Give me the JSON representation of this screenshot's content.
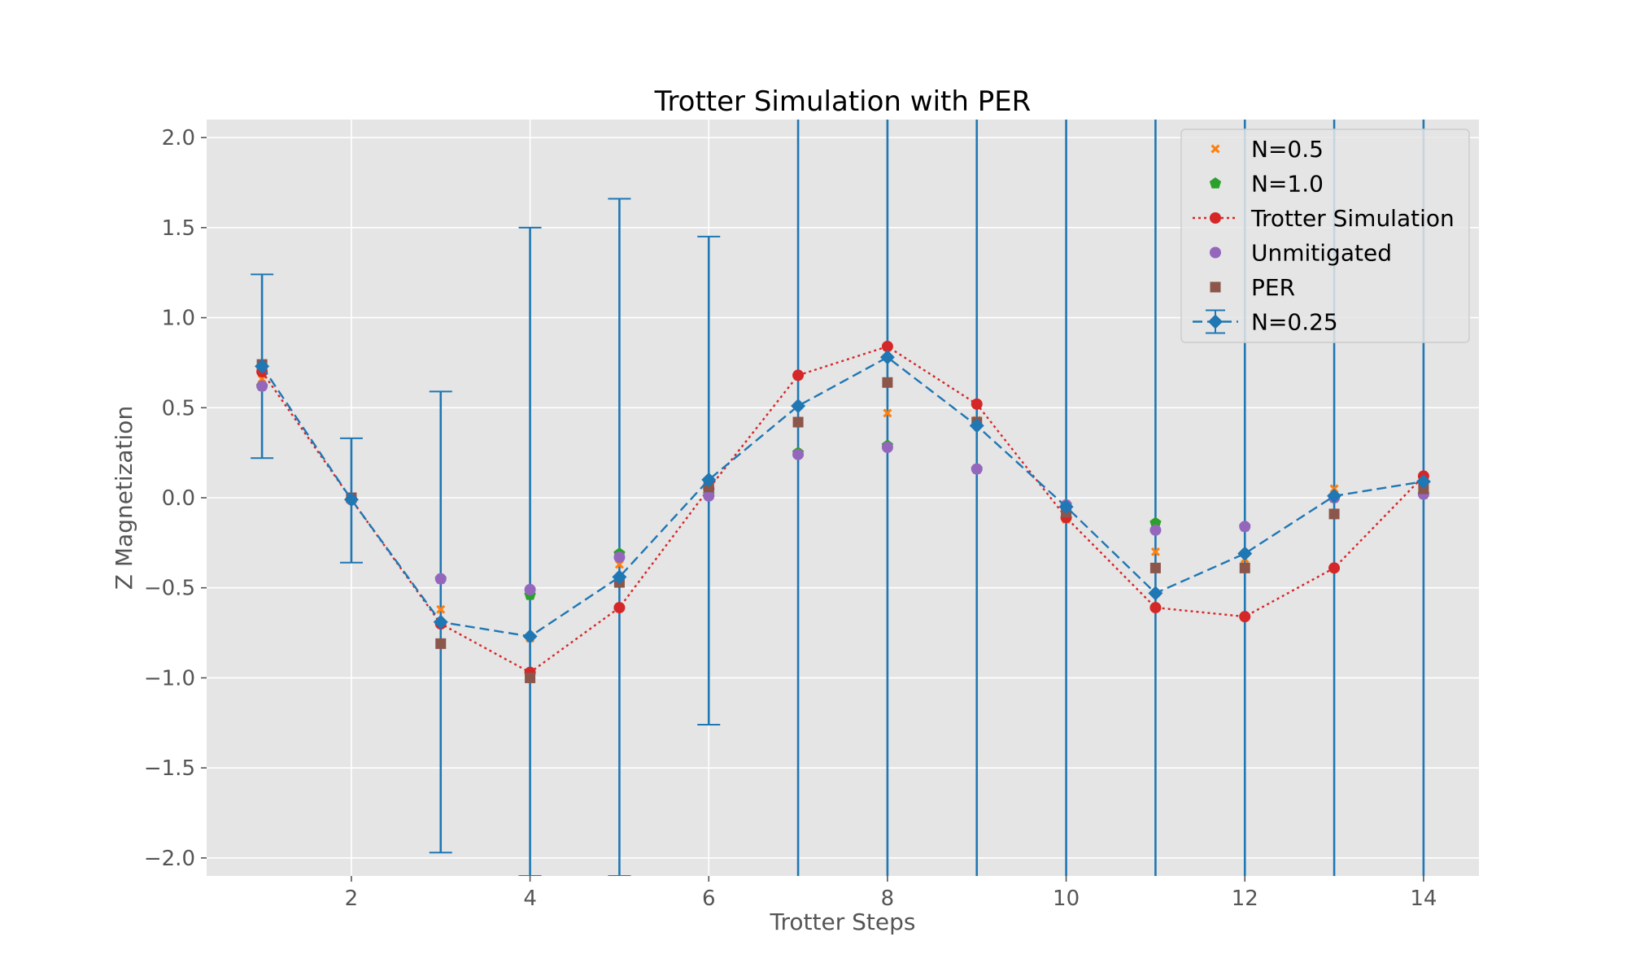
{
  "chart_data": {
    "type": "line",
    "title": "Trotter Simulation with PER",
    "xlabel": "Trotter Steps",
    "ylabel": "Z Magnetization",
    "xlim": [
      0.38,
      14.62
    ],
    "ylim": [
      -2.1,
      2.1
    ],
    "xticks": [
      2,
      4,
      6,
      8,
      10,
      12,
      14
    ],
    "yticks": [
      2.0,
      1.5,
      1.0,
      0.5,
      0.0,
      -0.5,
      -1.0,
      -1.5,
      -2.0
    ],
    "ytick_labels": [
      "2.0",
      "1.5",
      "1.0",
      "0.5",
      "0.0",
      "−0.5",
      "−1.0",
      "−1.5",
      "−2.0"
    ],
    "grid": true,
    "legend_position": "top-right",
    "x": [
      1,
      2,
      3,
      4,
      5,
      6,
      7,
      8,
      9,
      10,
      11,
      12,
      13,
      14
    ],
    "series": [
      {
        "name": "N=0.5",
        "marker": "x",
        "line": "none",
        "color": "#ff7f0e",
        "values": [
          0.66,
          -0.01,
          -0.62,
          -0.78,
          -0.37,
          0.07,
          0.25,
          0.47,
          0.43,
          -0.12,
          -0.3,
          -0.34,
          0.05,
          0.05
        ]
      },
      {
        "name": "N=1.0",
        "marker": "pentagon",
        "line": "none",
        "color": "#2ca02c",
        "values": [
          0.62,
          -0.01,
          -0.45,
          -0.54,
          -0.31,
          0.02,
          0.25,
          0.29,
          0.16,
          -0.04,
          -0.14,
          -0.16,
          0.0,
          0.02
        ]
      },
      {
        "name": "Trotter Simulation",
        "marker": "circle",
        "line": "dotted",
        "color": "#d62728",
        "values": [
          0.7,
          -0.01,
          -0.7,
          -0.97,
          -0.61,
          0.05,
          0.68,
          0.84,
          0.52,
          -0.11,
          -0.61,
          -0.66,
          -0.39,
          0.12
        ]
      },
      {
        "name": "Unmitigated",
        "marker": "circle",
        "line": "none",
        "color": "#9467bd",
        "values": [
          0.62,
          -0.01,
          -0.45,
          -0.51,
          -0.33,
          0.01,
          0.24,
          0.28,
          0.16,
          -0.04,
          -0.18,
          -0.16,
          0.0,
          0.02
        ]
      },
      {
        "name": "PER",
        "marker": "square",
        "line": "none",
        "color": "#8c564b",
        "values": [
          0.74,
          0.0,
          -0.81,
          -1.0,
          -0.47,
          0.06,
          0.42,
          0.64,
          0.42,
          -0.08,
          -0.39,
          -0.39,
          -0.09,
          0.05
        ]
      },
      {
        "name": "N=0.25",
        "marker": "diamond",
        "line": "dashed",
        "color": "#1f77b4",
        "values": [
          0.73,
          -0.01,
          -0.69,
          -0.77,
          -0.44,
          0.1,
          0.51,
          0.78,
          0.4,
          -0.05,
          -0.53,
          -0.31,
          0.01,
          0.09
        ],
        "error_low": [
          0.22,
          -0.36,
          -1.97,
          -2.1,
          -2.1,
          -1.26,
          -2.1,
          -2.1,
          -2.1,
          -2.1,
          -2.1,
          -2.1,
          -2.1,
          -2.1
        ],
        "error_high": [
          1.24,
          0.33,
          0.59,
          1.5,
          1.66,
          1.45,
          2.1,
          2.1,
          2.1,
          2.1,
          2.1,
          2.1,
          2.1,
          2.1
        ],
        "error_capped": [
          true,
          true,
          true,
          true,
          true,
          true,
          false,
          false,
          false,
          false,
          false,
          false,
          false,
          false
        ]
      }
    ],
    "legend_order": [
      0,
      1,
      2,
      3,
      4,
      5
    ],
    "colors": {
      "background": "#e5e5e5",
      "grid": "#ffffff",
      "tick": "#555555",
      "legend_bg": "#e5e5e5",
      "legend_border": "#cccccc"
    }
  }
}
